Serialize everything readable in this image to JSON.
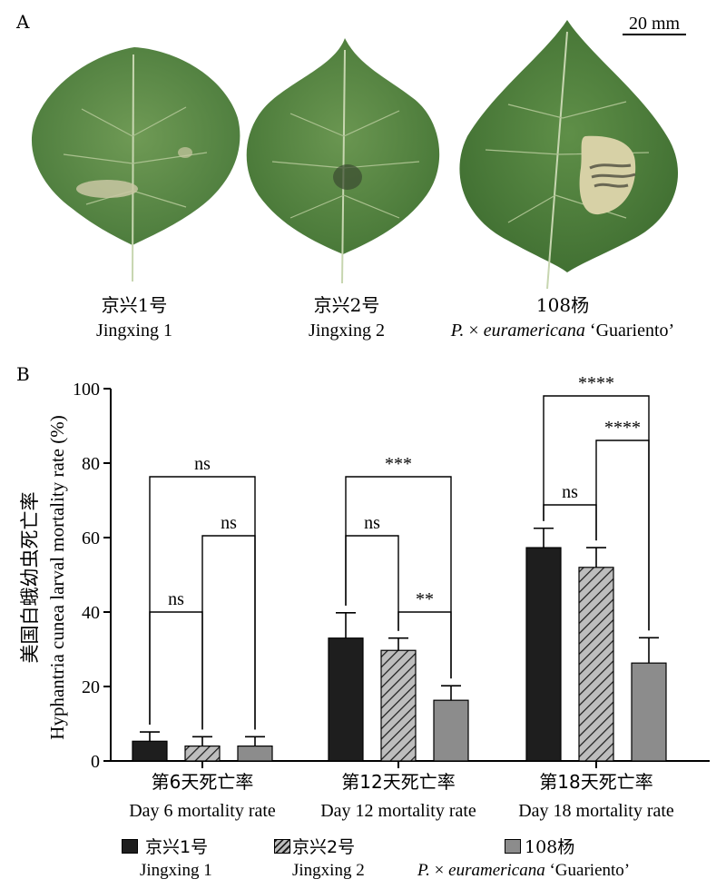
{
  "panel_a": {
    "letter": "A",
    "scale_bar_label": "20 mm",
    "leaves": [
      {
        "name_zh": "京兴1号",
        "name_en": "Jingxing 1"
      },
      {
        "name_zh": "京兴2号",
        "name_en": "Jingxing 2"
      },
      {
        "name_zh": "108杨",
        "name_en_prefix": "P.",
        "name_en_cross": " × ",
        "name_en_italic": "euramericana",
        "name_en_suffix": " ‘Guariento’"
      }
    ]
  },
  "panel_b": {
    "letter": "B"
  },
  "chart_data": {
    "type": "bar",
    "ylabel_zh": "美国白蛾幼虫死亡率",
    "ylabel_en": "Hyphantria cunea larval mortality rate (%)",
    "ylim": [
      0,
      100
    ],
    "yticks": [
      0,
      20,
      40,
      60,
      80,
      100
    ],
    "categories": [
      {
        "zh": "第6天死亡率",
        "en": "Day 6 mortality rate"
      },
      {
        "zh": "第12天死亡率",
        "en": "Day 12 mortality rate"
      },
      {
        "zh": "第18天死亡率",
        "en": "Day 18 mortality rate"
      }
    ],
    "series": [
      {
        "name": "京兴1号",
        "name_en": "Jingxing 1",
        "color": "#1e1e1e",
        "pattern": "solid",
        "values": [
          5.3,
          33.0,
          57.3
        ],
        "errors": [
          2.5,
          6.8,
          5.2
        ]
      },
      {
        "name": "京兴2号",
        "name_en": "Jingxing 2",
        "color": "#bdbdbd",
        "pattern": "hatch",
        "values": [
          4.0,
          29.7,
          52.0
        ],
        "errors": [
          2.5,
          3.3,
          5.3
        ]
      },
      {
        "name": "108杨",
        "name_en_prefix": "P.",
        "name_en_cross": " × ",
        "name_en_italic": "euramericana",
        "name_en_suffix": " ‘Guariento’",
        "color": "#8c8c8c",
        "pattern": "solid",
        "values": [
          4.0,
          16.3,
          26.3
        ],
        "errors": [
          2.5,
          3.9,
          6.8
        ]
      }
    ],
    "significance": [
      {
        "group": 0,
        "from": 0,
        "to": 1,
        "label": "ns"
      },
      {
        "group": 0,
        "from": 1,
        "to": 2,
        "label": "ns"
      },
      {
        "group": 0,
        "from": 0,
        "to": 2,
        "label": "ns"
      },
      {
        "group": 1,
        "from": 0,
        "to": 1,
        "label": "ns"
      },
      {
        "group": 1,
        "from": 1,
        "to": 2,
        "label": "**"
      },
      {
        "group": 1,
        "from": 0,
        "to": 2,
        "label": "***"
      },
      {
        "group": 2,
        "from": 0,
        "to": 1,
        "label": "ns"
      },
      {
        "group": 2,
        "from": 1,
        "to": 2,
        "label": "****"
      },
      {
        "group": 2,
        "from": 0,
        "to": 2,
        "label": "****"
      }
    ],
    "legend_position": "bottom"
  }
}
